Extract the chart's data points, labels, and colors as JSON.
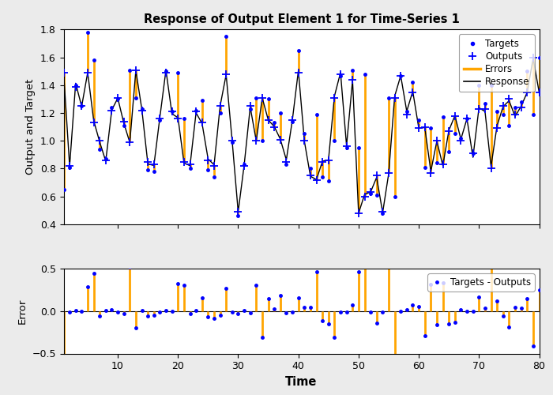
{
  "title": "Response of Output Element 1 for Time-Series 1",
  "ylabel1": "Output and Target",
  "ylabel2": "Error",
  "xlabel": "Time",
  "legend1": [
    "Targets",
    "Outputs",
    "Errors",
    "Response"
  ],
  "legend2": [
    "Targets - Outputs"
  ],
  "ylim1": [
    0.4,
    1.8
  ],
  "ylim2": [
    -0.5,
    0.5
  ],
  "xlim": [
    1,
    80
  ],
  "xticks": [
    10,
    20,
    30,
    40,
    50,
    60,
    70,
    80
  ],
  "target_color": "#0000FF",
  "output_color": "#0000FF",
  "error_color": "#FFA500",
  "response_color": "#000000",
  "bg_color": "#EBEBEB",
  "axes_bg": "#FFFFFF",
  "n": 80
}
